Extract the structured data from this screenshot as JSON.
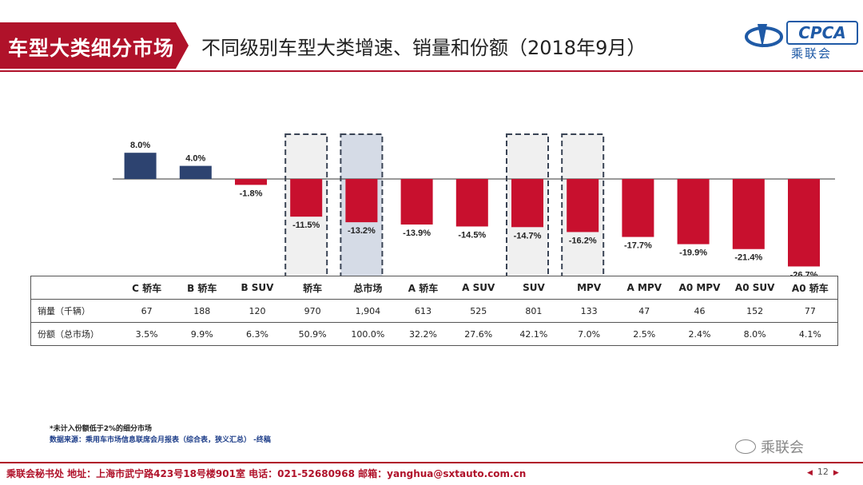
{
  "header": {
    "section_tag": "车型大类细分市场",
    "title": "不同级别车型大类增速、销量和份额（2018年9月）"
  },
  "logo": {
    "brand": "CPCA",
    "cn": "乘联会"
  },
  "chart_data": {
    "type": "bar",
    "categories": [
      "C 轿车",
      "B 轿车",
      "B SUV",
      "轿车",
      "总市场",
      "A 轿车",
      "A SUV",
      "SUV",
      "MPV",
      "A MPV",
      "A0 MPV",
      "A0 SUV",
      "A0 轿车"
    ],
    "values": [
      8.0,
      4.0,
      -1.8,
      -11.5,
      -13.2,
      -13.9,
      -14.5,
      -14.7,
      -16.2,
      -17.7,
      -19.9,
      -21.4,
      -26.7
    ],
    "value_labels": [
      "8.0%",
      "4.0%",
      "-1.8%",
      "-11.5%",
      "-13.2%",
      "-13.9%",
      "-14.5%",
      "-14.7%",
      "-16.2%",
      "-17.7%",
      "-19.9%",
      "-21.4%",
      "-26.7%"
    ],
    "highlighted": [
      "轿车",
      "总市场",
      "SUV",
      "MPV"
    ],
    "title": "",
    "xlabel": "",
    "ylabel": "",
    "ylim": [
      -28,
      9
    ],
    "grid": false,
    "colors": {
      "positive": "#2d4370",
      "negative": "#c8102e",
      "total_bg": "#d5dbe6",
      "highlight_bg": "#f0f0f0"
    }
  },
  "table": {
    "rows": [
      {
        "label": "销量（千辆）",
        "values": [
          "67",
          "188",
          "120",
          "970",
          "1,904",
          "613",
          "525",
          "801",
          "133",
          "47",
          "46",
          "152",
          "77"
        ]
      },
      {
        "label": "份额（总市场）",
        "values": [
          "3.5%",
          "9.9%",
          "6.3%",
          "50.9%",
          "100.0%",
          "32.2%",
          "27.6%",
          "42.1%",
          "7.0%",
          "2.5%",
          "2.4%",
          "8.0%",
          "4.1%"
        ]
      }
    ]
  },
  "notes": {
    "note1": "*未计入份额低于2%的细分市场",
    "note2": "数据来源：乘用车市场信息联席会月报表（综合表，狭义汇总）  -终稿"
  },
  "watermark": "乘联会",
  "footer": {
    "text": "乘联会秘书处   地址：上海市武宁路423号18号楼901室   电话：021-52680968   邮箱：yanghua@sxtauto.com.cn",
    "page": "12"
  }
}
